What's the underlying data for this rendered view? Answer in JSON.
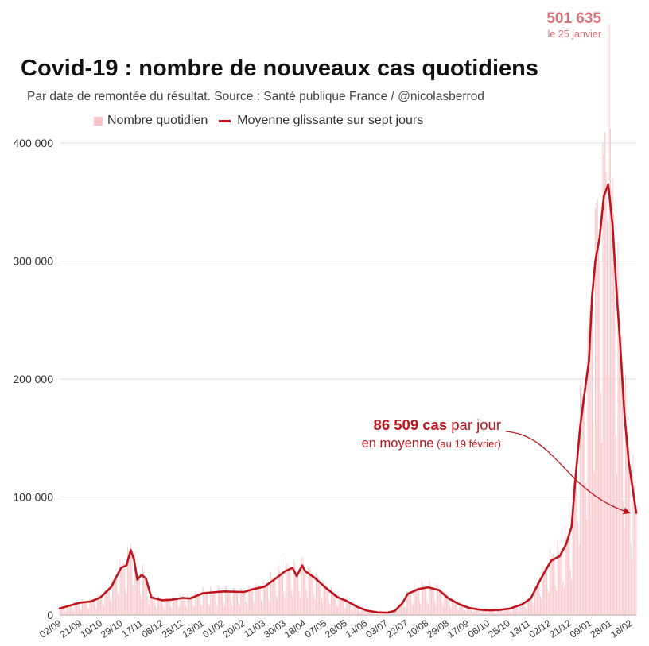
{
  "colors": {
    "bars": "#f8c4c8",
    "line": "#c0141c",
    "peak": "#e07078",
    "grid": "#dddddd",
    "annotation": "#c0141c"
  },
  "chart_data": {
    "type": "bar+line",
    "title": "Covid-19 : nombre de nouveaux cas quotidiens",
    "subtitle": "Par date de remontée du résultat. Source : Santé publique France / @nicolasberrod",
    "legend": [
      "Nombre quotidien",
      "Moyenne glissante sur sept jours"
    ],
    "legend_position": "top",
    "ylim": [
      0,
      400000
    ],
    "y_ticks": [
      {
        "value": 0,
        "label": "0"
      },
      {
        "value": 100000,
        "label": "100 000"
      },
      {
        "value": 200000,
        "label": "200 000"
      },
      {
        "value": 300000,
        "label": "300 000"
      },
      {
        "value": 400000,
        "label": "400 000"
      }
    ],
    "x_start": "2020-09-02",
    "x_end": "2022-02-19",
    "x_tick_labels": [
      "02/09",
      "21/09",
      "10/10",
      "29/10",
      "17/11",
      "06/12",
      "25/12",
      "13/01",
      "01/02",
      "20/02",
      "11/03",
      "30/03",
      "18/04",
      "07/05",
      "26/05",
      "14/06",
      "03/07",
      "22/07",
      "10/08",
      "29/08",
      "17/09",
      "06/10",
      "25/10",
      "13/11",
      "02/12",
      "21/12",
      "09/01",
      "28/01",
      "16/02"
    ],
    "series": [
      {
        "name": "Moyenne glissante sur sept jours",
        "type": "line",
        "points": [
          [
            "2020-09-02",
            5500
          ],
          [
            "2020-09-21",
            10500
          ],
          [
            "2020-10-01",
            11500
          ],
          [
            "2020-10-10",
            15000
          ],
          [
            "2020-10-20",
            24000
          ],
          [
            "2020-10-29",
            40000
          ],
          [
            "2020-11-03",
            42000
          ],
          [
            "2020-11-07",
            55000
          ],
          [
            "2020-11-10",
            47000
          ],
          [
            "2020-11-13",
            30000
          ],
          [
            "2020-11-17",
            34000
          ],
          [
            "2020-11-21",
            31000
          ],
          [
            "2020-11-26",
            15000
          ],
          [
            "2020-12-06",
            12500
          ],
          [
            "2020-12-15",
            13000
          ],
          [
            "2020-12-25",
            14500
          ],
          [
            "2021-01-01",
            14000
          ],
          [
            "2021-01-13",
            18500
          ],
          [
            "2021-02-01",
            20000
          ],
          [
            "2021-02-20",
            19500
          ],
          [
            "2021-03-01",
            22000
          ],
          [
            "2021-03-11",
            24000
          ],
          [
            "2021-03-20",
            30000
          ],
          [
            "2021-03-30",
            37000
          ],
          [
            "2021-04-06",
            40000
          ],
          [
            "2021-04-10",
            33000
          ],
          [
            "2021-04-15",
            42000
          ],
          [
            "2021-04-18",
            37000
          ],
          [
            "2021-04-26",
            32000
          ],
          [
            "2021-05-07",
            23000
          ],
          [
            "2021-05-18",
            15000
          ],
          [
            "2021-05-26",
            12000
          ],
          [
            "2021-06-05",
            7000
          ],
          [
            "2021-06-14",
            3800
          ],
          [
            "2021-06-24",
            2200
          ],
          [
            "2021-07-03",
            2000
          ],
          [
            "2021-07-10",
            3500
          ],
          [
            "2021-07-17",
            10000
          ],
          [
            "2021-07-22",
            18000
          ],
          [
            "2021-08-01",
            22000
          ],
          [
            "2021-08-10",
            23500
          ],
          [
            "2021-08-20",
            21000
          ],
          [
            "2021-08-29",
            14000
          ],
          [
            "2021-09-08",
            9000
          ],
          [
            "2021-09-17",
            6000
          ],
          [
            "2021-09-27",
            4500
          ],
          [
            "2021-10-06",
            4000
          ],
          [
            "2021-10-15",
            4300
          ],
          [
            "2021-10-25",
            5500
          ],
          [
            "2021-11-05",
            9000
          ],
          [
            "2021-11-13",
            14000
          ],
          [
            "2021-11-22",
            30000
          ],
          [
            "2021-12-02",
            46000
          ],
          [
            "2021-12-10",
            50000
          ],
          [
            "2021-12-16",
            60000
          ],
          [
            "2021-12-21",
            75000
          ],
          [
            "2021-12-25",
            120000
          ],
          [
            "2021-12-29",
            160000
          ],
          [
            "2022-01-03",
            195000
          ],
          [
            "2022-01-06",
            215000
          ],
          [
            "2022-01-09",
            270000
          ],
          [
            "2022-01-12",
            300000
          ],
          [
            "2022-01-16",
            320000
          ],
          [
            "2022-01-20",
            355000
          ],
          [
            "2022-01-24",
            365000
          ],
          [
            "2022-01-28",
            330000
          ],
          [
            "2022-02-01",
            270000
          ],
          [
            "2022-02-04",
            230000
          ],
          [
            "2022-02-08",
            170000
          ],
          [
            "2022-02-12",
            130000
          ],
          [
            "2022-02-16",
            105000
          ],
          [
            "2022-02-19",
            86509
          ]
        ]
      },
      {
        "name": "Nombre quotidien",
        "type": "bar",
        "description": "Daily counts fluctuating around the moving average (weekly pattern)",
        "peak": {
          "date": "2022-01-25",
          "value": 501635
        }
      }
    ],
    "annotations": [
      {
        "id": "peak",
        "value_text": "501 635",
        "sub_text": "le 25 janvier",
        "target_date": "2022-01-25",
        "target_value": 501635
      },
      {
        "id": "latest",
        "bold_text": "86 509 cas",
        "text1": " par jour",
        "text2": "en moyenne",
        "small_text": " (au 19 février)",
        "target_date": "2022-02-19",
        "target_value": 86509
      }
    ]
  }
}
